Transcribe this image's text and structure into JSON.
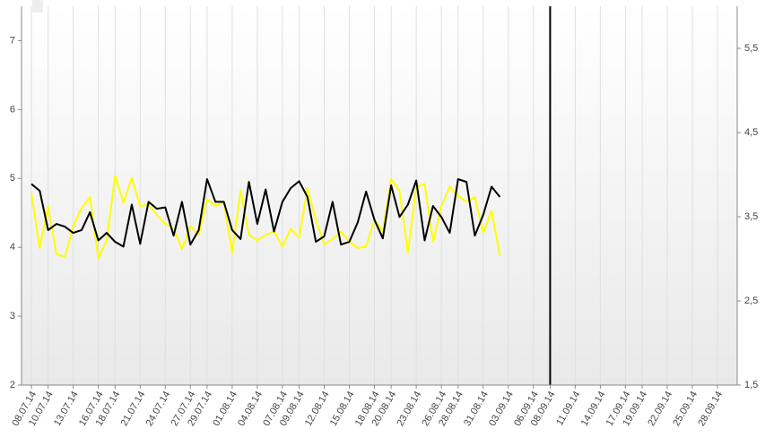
{
  "chart_data": {
    "type": "line",
    "categories": [
      "08.07.14",
      null,
      "10.07.14",
      null,
      null,
      "13.07.14",
      null,
      null,
      "16.07.14",
      null,
      "18.07.14",
      null,
      null,
      "21.07.14",
      null,
      null,
      "24.07.14",
      null,
      null,
      "27.07.14",
      null,
      "29.07.14",
      null,
      null,
      "01.08.14",
      null,
      null,
      "04.08.14",
      null,
      null,
      "07.08.14",
      null,
      "09.08.14",
      null,
      null,
      "12.08.14",
      null,
      null,
      "15.08.14",
      null,
      null,
      "18.08.14",
      null,
      "20.08.14",
      null,
      null,
      "23.08.14",
      null,
      null,
      "26.08.14",
      null,
      "28.08.14",
      null,
      null,
      "31.08.14",
      null,
      null,
      "03.09.14",
      null,
      null,
      "06.09.14",
      null,
      "08.09.14",
      null,
      null,
      "11.09.14",
      null,
      null,
      "14.09.14",
      null,
      null,
      "17.09.14",
      null,
      "19.09.14",
      null,
      null,
      "22.09.14",
      null,
      null,
      "25.09.14",
      null,
      null,
      "28.09.14"
    ],
    "series": [
      {
        "color": "#ffff00",
        "values": [
          4.79,
          3.99,
          4.6,
          3.9,
          3.86,
          4.31,
          4.57,
          4.73,
          3.84,
          4.1,
          5.04,
          4.65,
          5.01,
          4.6,
          4.62,
          4.47,
          4.34,
          4.27,
          3.97,
          4.31,
          4.18,
          4.7,
          4.6,
          4.66,
          3.92,
          4.82,
          4.18,
          4.1,
          4.18,
          4.23,
          4.01,
          4.27,
          4.14,
          4.86,
          4.4,
          4.04,
          4.12,
          4.23,
          4.08,
          3.99,
          4.01,
          4.4,
          4.23,
          4.99,
          4.82,
          3.92,
          4.88,
          4.92,
          4.08,
          4.6,
          4.88,
          4.75,
          4.66,
          4.73,
          4.21,
          4.53,
          3.88,
          null,
          null,
          null,
          null,
          null,
          null,
          null,
          null,
          null,
          null,
          null,
          null,
          null,
          null,
          null,
          null,
          null,
          null,
          null,
          null,
          null,
          null,
          null,
          null,
          null,
          null
        ]
      },
      {
        "color": "#000000",
        "values": [
          4.92,
          4.82,
          4.25,
          4.34,
          4.3,
          4.21,
          4.25,
          4.51,
          4.1,
          4.21,
          4.08,
          4.01,
          4.62,
          4.05,
          4.66,
          4.56,
          4.58,
          4.17,
          4.66,
          4.04,
          4.25,
          4.99,
          4.66,
          4.66,
          4.25,
          4.12,
          4.95,
          4.34,
          4.84,
          4.23,
          4.66,
          4.86,
          4.96,
          4.73,
          4.08,
          4.16,
          4.66,
          4.04,
          4.08,
          4.36,
          4.81,
          4.4,
          4.13,
          4.9,
          4.44,
          4.62,
          4.97,
          4.1,
          4.6,
          4.44,
          4.21,
          4.99,
          4.95,
          4.17,
          4.47,
          4.88,
          4.73,
          null,
          null,
          null,
          null,
          null,
          null,
          null,
          null,
          null,
          null,
          null,
          null,
          null,
          null,
          null,
          null,
          null,
          null,
          null,
          null,
          null,
          null,
          null,
          null,
          null,
          null
        ]
      }
    ],
    "ylim": [
      2,
      7.5
    ],
    "yticks": [
      2,
      3,
      4,
      5,
      6,
      7
    ],
    "y2lim": [
      1.5,
      6
    ],
    "y2ticks": [
      {
        "value": 1.5,
        "label": "1,5"
      },
      {
        "value": 2.5,
        "label": "2,5"
      },
      {
        "value": 3.5,
        "label": "3,5"
      },
      {
        "value": 4.5,
        "label": "4,5"
      },
      {
        "value": 5.5,
        "label": "5,5"
      }
    ],
    "grid": "x",
    "marker_line": {
      "category": "08.09.14",
      "color": "#000000"
    }
  }
}
